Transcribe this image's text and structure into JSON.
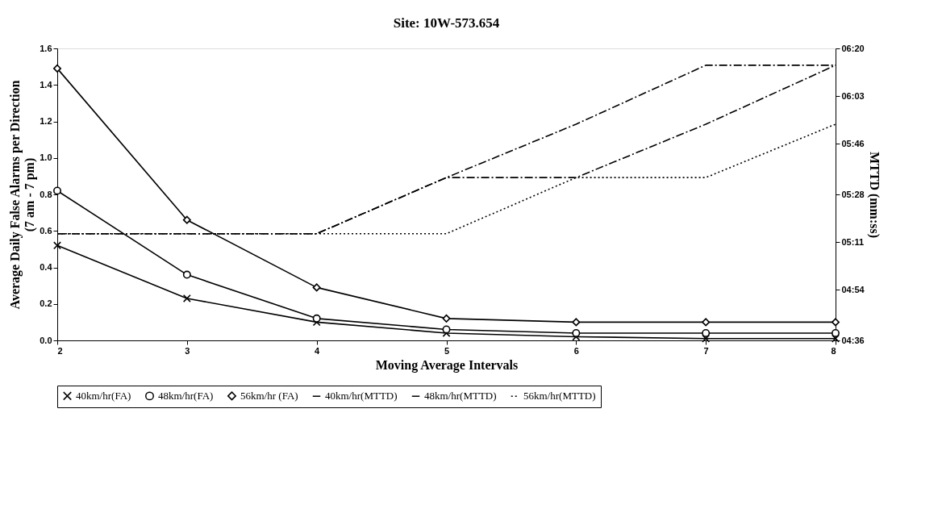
{
  "chart_data": {
    "type": "line",
    "title": "Site: 10W-573.654",
    "xlabel": "Moving Average Intervals",
    "ylabel": "Average Daily False Alarms per Direction (7 am - 7 pm)",
    "y2label": "MTTD (mm:ss)",
    "x": [
      2,
      3,
      4,
      5,
      6,
      7,
      8
    ],
    "series": [
      {
        "name": "40km/hr(FA)",
        "color": "#000000",
        "marker": "cross",
        "line_style": "solid",
        "values": [
          0.52,
          0.23,
          0.1,
          0.04,
          0.02,
          0.01,
          0.01
        ]
      },
      {
        "name": "48km/hr(FA)",
        "color": "#000000",
        "marker": "circle",
        "line_style": "solid",
        "values": [
          0.82,
          0.36,
          0.12,
          0.06,
          0.04,
          0.04,
          0.04
        ]
      },
      {
        "name": "56km/hr (FA)",
        "color": "#000000",
        "marker": "diamond",
        "line_style": "solid",
        "values": [
          1.49,
          0.66,
          0.29,
          0.12,
          0.1,
          0.1,
          0.1
        ]
      },
      {
        "name": "40km/hr(MTTD)",
        "color": "#000000",
        "marker": "none",
        "line_style": "dashed",
        "axis": "y2",
        "values": [
          314,
          314,
          314,
          334,
          353,
          374,
          374
        ]
      },
      {
        "name": "48km/hr(MTTD)",
        "color": "#000000",
        "marker": "none",
        "line_style": "dashed",
        "axis": "y2",
        "values": [
          314,
          314,
          314,
          334,
          334,
          353,
          374
        ]
      },
      {
        "name": "56km/hr(MTTD)",
        "color": "#000000",
        "marker": "none",
        "line_style": "dotted",
        "axis": "y2",
        "values": [
          314,
          314,
          314,
          314,
          334,
          334,
          353
        ]
      }
    ],
    "xlim": [
      2,
      8
    ],
    "xticks": [
      2,
      3,
      4,
      5,
      6,
      7,
      8
    ],
    "ylim": [
      0,
      1.6
    ],
    "yticks": [
      {
        "value": 0,
        "label": "0.0"
      },
      0.2,
      0.4,
      0.6,
      0.8,
      {
        "value": 1,
        "label": "1.0"
      },
      1.2,
      1.4,
      1.6
    ],
    "y2lim": [
      276,
      380
    ],
    "y2ticks": [
      {
        "value": 276,
        "label": "04:36"
      },
      {
        "value": 294,
        "label": "04:54"
      },
      {
        "value": 311,
        "label": "05:11"
      },
      {
        "value": 328,
        "label": "05:28"
      },
      {
        "value": 346,
        "label": "05:46"
      },
      {
        "value": 363,
        "label": "06:03"
      },
      {
        "value": 380,
        "label": "06:20"
      }
    ],
    "grid": false,
    "legend": "bottom"
  }
}
